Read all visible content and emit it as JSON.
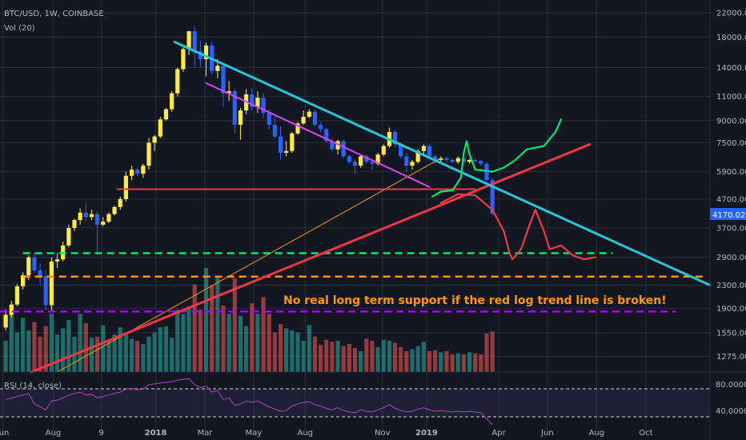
{
  "header": {
    "symbol_line": "BTC/USD, 1W, COINBASE",
    "volume_label": "Vol (20)"
  },
  "annotation": {
    "text": "No real long term support if the red log trend line is broken!"
  },
  "rsi_panel": {
    "label": "RSI (14, close)",
    "upper_level": "80.0000",
    "lower_level": "40.0000",
    "upper_value": 80,
    "lower_value": 40
  },
  "current_price": "4170.02",
  "colors": {
    "background": "#131722",
    "up_candle": "#ffeb3b",
    "down_candle": "#2962ff",
    "volume_up": "#26a69a",
    "volume_down": "#ef5350",
    "price_tag": "#2962ff",
    "annotation_text": "#ff9800"
  },
  "chart_data": {
    "type": "candlestick",
    "title": "BTC/USD, 1W, COINBASE",
    "y_axis": {
      "scale": "log",
      "ticks": [
        22000,
        18000,
        14000,
        11000,
        9000,
        7500,
        5900,
        4700,
        3700,
        2900,
        2300,
        1900,
        1550,
        1275
      ],
      "tick_labels": [
        "22000.00",
        "18000.00",
        "14000.00",
        "11000.00",
        "9000.00",
        "7500.00",
        "5900.00",
        "4700.00",
        "3700.00",
        "2900.00",
        "2300.00",
        "1900.00",
        "1550.00",
        "1275.00"
      ]
    },
    "x_axis": {
      "tick_labels": [
        "Jun",
        "Aug",
        "9",
        "2018",
        "Mar",
        "May",
        "Aug",
        "Nov",
        "2019",
        "Apr",
        "Jun",
        "Aug",
        "Oct"
      ],
      "bold_labels": [
        "2018",
        "2019"
      ]
    },
    "ohlc": [
      {
        "o": 1620,
        "h": 1880,
        "l": 1580,
        "c": 1800
      },
      {
        "o": 1800,
        "h": 2020,
        "l": 1760,
        "c": 1960
      },
      {
        "o": 1960,
        "h": 2330,
        "l": 1930,
        "c": 2280
      },
      {
        "o": 2280,
        "h": 2560,
        "l": 2220,
        "c": 2500
      },
      {
        "o": 2500,
        "h": 2950,
        "l": 2400,
        "c": 2900
      },
      {
        "o": 2900,
        "h": 3000,
        "l": 2550,
        "c": 2600
      },
      {
        "o": 2600,
        "h": 2750,
        "l": 2300,
        "c": 2480
      },
      {
        "o": 2480,
        "h": 2600,
        "l": 1870,
        "c": 1950
      },
      {
        "o": 1950,
        "h": 2900,
        "l": 1850,
        "c": 2800
      },
      {
        "o": 2800,
        "h": 3000,
        "l": 2650,
        "c": 2850
      },
      {
        "o": 2850,
        "h": 3300,
        "l": 2800,
        "c": 3200
      },
      {
        "o": 3200,
        "h": 3800,
        "l": 3150,
        "c": 3700
      },
      {
        "o": 3700,
        "h": 4000,
        "l": 3600,
        "c": 3950
      },
      {
        "o": 3950,
        "h": 4350,
        "l": 3800,
        "c": 4200
      },
      {
        "o": 4200,
        "h": 4550,
        "l": 3900,
        "c": 4050
      },
      {
        "o": 4050,
        "h": 4300,
        "l": 3950,
        "c": 4150
      },
      {
        "o": 4150,
        "h": 4250,
        "l": 3000,
        "c": 3800
      },
      {
        "o": 3800,
        "h": 4050,
        "l": 3750,
        "c": 3900
      },
      {
        "o": 3900,
        "h": 4200,
        "l": 3850,
        "c": 4150
      },
      {
        "o": 4150,
        "h": 4450,
        "l": 4100,
        "c": 4400
      },
      {
        "o": 4400,
        "h": 4800,
        "l": 4300,
        "c": 4700
      },
      {
        "o": 4700,
        "h": 5900,
        "l": 4600,
        "c": 5700
      },
      {
        "o": 5700,
        "h": 6200,
        "l": 5500,
        "c": 6000
      },
      {
        "o": 6000,
        "h": 6100,
        "l": 5700,
        "c": 5800
      },
      {
        "o": 5800,
        "h": 6300,
        "l": 5600,
        "c": 6200
      },
      {
        "o": 6200,
        "h": 7800,
        "l": 6000,
        "c": 7500
      },
      {
        "o": 7500,
        "h": 8000,
        "l": 7000,
        "c": 7900
      },
      {
        "o": 7900,
        "h": 9300,
        "l": 7800,
        "c": 9100
      },
      {
        "o": 9100,
        "h": 10000,
        "l": 9000,
        "c": 9900
      },
      {
        "o": 9900,
        "h": 11500,
        "l": 9700,
        "c": 11300
      },
      {
        "o": 11300,
        "h": 14000,
        "l": 11000,
        "c": 13800
      },
      {
        "o": 13800,
        "h": 16500,
        "l": 13500,
        "c": 16300
      },
      {
        "o": 16300,
        "h": 19000,
        "l": 15500,
        "c": 18900
      },
      {
        "o": 18900,
        "h": 19700,
        "l": 14000,
        "c": 16000
      },
      {
        "o": 16000,
        "h": 17500,
        "l": 14000,
        "c": 15000
      },
      {
        "o": 15000,
        "h": 17200,
        "l": 13000,
        "c": 16800
      },
      {
        "o": 16800,
        "h": 17300,
        "l": 13200,
        "c": 13600
      },
      {
        "o": 13600,
        "h": 15000,
        "l": 12800,
        "c": 14200
      },
      {
        "o": 14200,
        "h": 14300,
        "l": 10100,
        "c": 11300
      },
      {
        "o": 11300,
        "h": 12500,
        "l": 10600,
        "c": 11500
      },
      {
        "o": 11500,
        "h": 11700,
        "l": 8100,
        "c": 8700
      },
      {
        "o": 8700,
        "h": 10000,
        "l": 7700,
        "c": 9800
      },
      {
        "o": 9800,
        "h": 11700,
        "l": 9500,
        "c": 11200
      },
      {
        "o": 11200,
        "h": 11800,
        "l": 9800,
        "c": 10100
      },
      {
        "o": 10100,
        "h": 11500,
        "l": 9600,
        "c": 10900
      },
      {
        "o": 10900,
        "h": 11300,
        "l": 9200,
        "c": 9600
      },
      {
        "o": 9600,
        "h": 9900,
        "l": 8400,
        "c": 8700
      },
      {
        "o": 8700,
        "h": 9300,
        "l": 7800,
        "c": 7900
      },
      {
        "o": 7900,
        "h": 8600,
        "l": 6500,
        "c": 6900
      },
      {
        "o": 6900,
        "h": 7600,
        "l": 6700,
        "c": 7000
      },
      {
        "o": 7000,
        "h": 8200,
        "l": 6900,
        "c": 8100
      },
      {
        "o": 8100,
        "h": 8900,
        "l": 8000,
        "c": 8800
      },
      {
        "o": 8800,
        "h": 9800,
        "l": 8700,
        "c": 9300
      },
      {
        "o": 9300,
        "h": 9900,
        "l": 9200,
        "c": 9700
      },
      {
        "o": 9700,
        "h": 9900,
        "l": 8600,
        "c": 8700
      },
      {
        "o": 8700,
        "h": 8900,
        "l": 8200,
        "c": 8400
      },
      {
        "o": 8400,
        "h": 8500,
        "l": 7500,
        "c": 7600
      },
      {
        "o": 7600,
        "h": 7800,
        "l": 7000,
        "c": 7100
      },
      {
        "o": 7100,
        "h": 7700,
        "l": 6800,
        "c": 7600
      },
      {
        "o": 7600,
        "h": 7700,
        "l": 6600,
        "c": 6700
      },
      {
        "o": 6700,
        "h": 6800,
        "l": 6300,
        "c": 6400
      },
      {
        "o": 6400,
        "h": 6500,
        "l": 5800,
        "c": 6200
      },
      {
        "o": 6200,
        "h": 6800,
        "l": 6100,
        "c": 6700
      },
      {
        "o": 6700,
        "h": 6800,
        "l": 6300,
        "c": 6400
      },
      {
        "o": 6400,
        "h": 6500,
        "l": 6000,
        "c": 6300
      },
      {
        "o": 6300,
        "h": 6900,
        "l": 6200,
        "c": 6800
      },
      {
        "o": 6800,
        "h": 7400,
        "l": 6700,
        "c": 7300
      },
      {
        "o": 7300,
        "h": 8500,
        "l": 7200,
        "c": 8200
      },
      {
        "o": 8200,
        "h": 8300,
        "l": 7200,
        "c": 7400
      },
      {
        "o": 7400,
        "h": 7500,
        "l": 6600,
        "c": 6700
      },
      {
        "o": 6700,
        "h": 6900,
        "l": 5900,
        "c": 6200
      },
      {
        "o": 6200,
        "h": 6500,
        "l": 6000,
        "c": 6400
      },
      {
        "o": 6400,
        "h": 7100,
        "l": 6300,
        "c": 7000
      },
      {
        "o": 7000,
        "h": 7400,
        "l": 6800,
        "c": 7300
      },
      {
        "o": 7300,
        "h": 7400,
        "l": 6600,
        "c": 6700
      },
      {
        "o": 6700,
        "h": 6800,
        "l": 6300,
        "c": 6500
      },
      {
        "o": 6500,
        "h": 6700,
        "l": 6350,
        "c": 6600
      },
      {
        "o": 6600,
        "h": 6700,
        "l": 6400,
        "c": 6500
      },
      {
        "o": 6500,
        "h": 6600,
        "l": 6350,
        "c": 6400
      },
      {
        "o": 6400,
        "h": 6700,
        "l": 6300,
        "c": 6600
      },
      {
        "o": 6600,
        "h": 6650,
        "l": 6350,
        "c": 6400
      },
      {
        "o": 6400,
        "h": 6550,
        "l": 6300,
        "c": 6500
      },
      {
        "o": 6500,
        "h": 6550,
        "l": 6350,
        "c": 6450
      },
      {
        "o": 6450,
        "h": 6500,
        "l": 6200,
        "c": 6300
      },
      {
        "o": 6300,
        "h": 6400,
        "l": 5200,
        "c": 5500
      },
      {
        "o": 5500,
        "h": 5600,
        "l": 4100,
        "c": 4170
      }
    ],
    "volume": {
      "scale_max": 2000,
      "values": [
        300,
        600,
        380,
        520,
        400,
        480,
        340,
        440,
        560,
        360,
        420,
        500,
        340,
        560,
        470,
        330,
        340,
        450,
        310,
        360,
        430,
        380,
        320,
        300,
        270,
        340,
        380,
        430,
        440,
        330,
        600,
        560,
        630,
        840,
        600,
        1000,
        830,
        920,
        640,
        560,
        900,
        540,
        440,
        660,
        560,
        720,
        560,
        380,
        460,
        420,
        400,
        380,
        300,
        450,
        340,
        260,
        310,
        290,
        300,
        250,
        270,
        230,
        200,
        320,
        300,
        240,
        310,
        300,
        280,
        240,
        200,
        220,
        250,
        290,
        200,
        210,
        190,
        200,
        170,
        180,
        170,
        190,
        180,
        170,
        370,
        390
      ],
      "up": [
        true,
        true,
        true,
        true,
        true,
        false,
        false,
        false,
        true,
        true,
        true,
        true,
        true,
        true,
        false,
        true,
        false,
        true,
        true,
        true,
        true,
        true,
        true,
        false,
        true,
        true,
        true,
        true,
        true,
        true,
        true,
        true,
        true,
        false,
        false,
        true,
        false,
        true,
        false,
        true,
        false,
        true,
        true,
        false,
        true,
        false,
        false,
        false,
        false,
        true,
        true,
        true,
        true,
        true,
        false,
        false,
        false,
        false,
        true,
        false,
        false,
        false,
        true,
        false,
        false,
        true,
        true,
        true,
        false,
        false,
        false,
        true,
        true,
        true,
        false,
        false,
        true,
        false,
        false,
        true,
        false,
        true,
        false,
        false,
        false,
        false
      ]
    },
    "rsi": [
      64,
      66,
      68,
      70,
      72,
      58,
      54,
      50,
      62,
      63,
      66,
      70,
      72,
      74,
      70,
      71,
      66,
      68,
      70,
      72,
      74,
      78,
      79,
      77,
      78,
      84,
      85,
      86,
      87,
      88,
      90,
      91,
      92,
      84,
      80,
      82,
      74,
      76,
      64,
      66,
      56,
      58,
      62,
      60,
      62,
      58,
      54,
      51,
      48,
      49,
      55,
      58,
      60,
      61,
      57,
      55,
      52,
      50,
      53,
      49,
      47,
      46,
      50,
      48,
      47,
      50,
      53,
      57,
      52,
      49,
      47,
      48,
      51,
      53,
      50,
      48,
      49,
      48,
      47,
      48,
      47,
      48,
      47,
      46,
      38,
      30
    ],
    "rsi_range": [
      20,
      100
    ],
    "price_axis_range": [
      1120,
      24500
    ],
    "x_range_weeks": [
      0,
      124
    ],
    "x_tick_weeks": [
      0.5,
      9.3,
      17.7,
      27.2,
      35.8,
      44.3,
      53.3,
      66.8,
      74.5,
      87.1,
      95.6,
      104.2,
      112.8
    ],
    "drawings": {
      "cyan_downtrend": {
        "from": [
          30.5,
          17300
        ],
        "to": [
          124,
          2300
        ],
        "color": "#26c6da"
      },
      "magenta_trend": {
        "from": [
          36,
          12300
        ],
        "to": [
          75,
          5200
        ],
        "color": "#e040fb"
      },
      "red_log_trend": {
        "from": [
          5.5,
          1120
        ],
        "to": [
          103,
          7400
        ],
        "color": "#f23645"
      },
      "orange_thin_trend": {
        "from": [
          10,
          1120
        ],
        "to": [
          77,
          6600
        ],
        "color": "#ff9800"
      },
      "red_horizontal": {
        "from": [
          20.5,
          5100
        ],
        "to": [
          83,
          5100
        ],
        "color": "#f23645"
      },
      "green_dashed_support": {
        "price": 3000,
        "from": 4,
        "to": 107,
        "color": "#00e676"
      },
      "orange_dashed_support": {
        "price": 2470,
        "from": 4,
        "to": 123,
        "color": "#ff9800"
      },
      "purple_dashed_support": {
        "price": 1850,
        "from": 0,
        "to": 118,
        "color": "#aa00ff"
      },
      "green_scenario": {
        "color": "#00e676",
        "points": [
          [
            75.5,
            4800
          ],
          [
            77,
            5000
          ],
          [
            79,
            5050
          ],
          [
            80.5,
            5600
          ],
          [
            81,
            6900
          ],
          [
            81.5,
            7600
          ],
          [
            82,
            6800
          ],
          [
            83,
            6000
          ],
          [
            86,
            5900
          ],
          [
            88,
            6100
          ],
          [
            90,
            6500
          ],
          [
            92,
            7100
          ],
          [
            95,
            7300
          ],
          [
            97,
            8200
          ],
          [
            98,
            9100
          ]
        ]
      },
      "red_scenario": {
        "color": "#f23645",
        "points": [
          [
            77,
            4550
          ],
          [
            80,
            4900
          ],
          [
            83,
            4850
          ],
          [
            86,
            4300
          ],
          [
            88,
            3600
          ],
          [
            89,
            3000
          ],
          [
            89.5,
            2850
          ],
          [
            91,
            3100
          ],
          [
            92.5,
            3800
          ],
          [
            93.5,
            4300
          ],
          [
            95,
            3600
          ],
          [
            96,
            3100
          ],
          [
            98,
            3200
          ],
          [
            100,
            2950
          ],
          [
            102,
            2850
          ],
          [
            104,
            2900
          ]
        ]
      }
    }
  }
}
